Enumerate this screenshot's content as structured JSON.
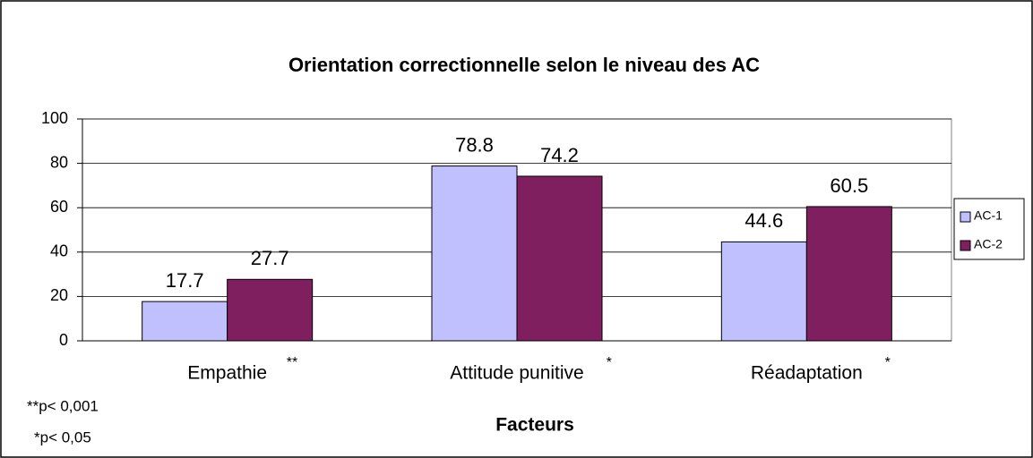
{
  "chart_data": {
    "type": "bar",
    "title": "Orientation correctionnelle selon le niveau des AC",
    "x_label": "Facteurs",
    "categories": [
      "Empathie",
      "Attitude punitive",
      "Réadaptation"
    ],
    "category_marks": [
      "**",
      "*",
      "*"
    ],
    "footnotes": [
      "**p< 0,001",
      "*p< 0,05"
    ],
    "series": [
      {
        "name": "AC-1",
        "color": "#c0c0ff",
        "values": [
          17.7,
          78.8,
          44.6
        ]
      },
      {
        "name": "AC-2",
        "color": "#7f1f5f",
        "values": [
          27.7,
          74.2,
          60.5
        ]
      }
    ],
    "ylim": [
      0,
      100
    ],
    "yticks": [
      0,
      20,
      40,
      60,
      80,
      100
    ],
    "grid": true,
    "legend": "right"
  }
}
